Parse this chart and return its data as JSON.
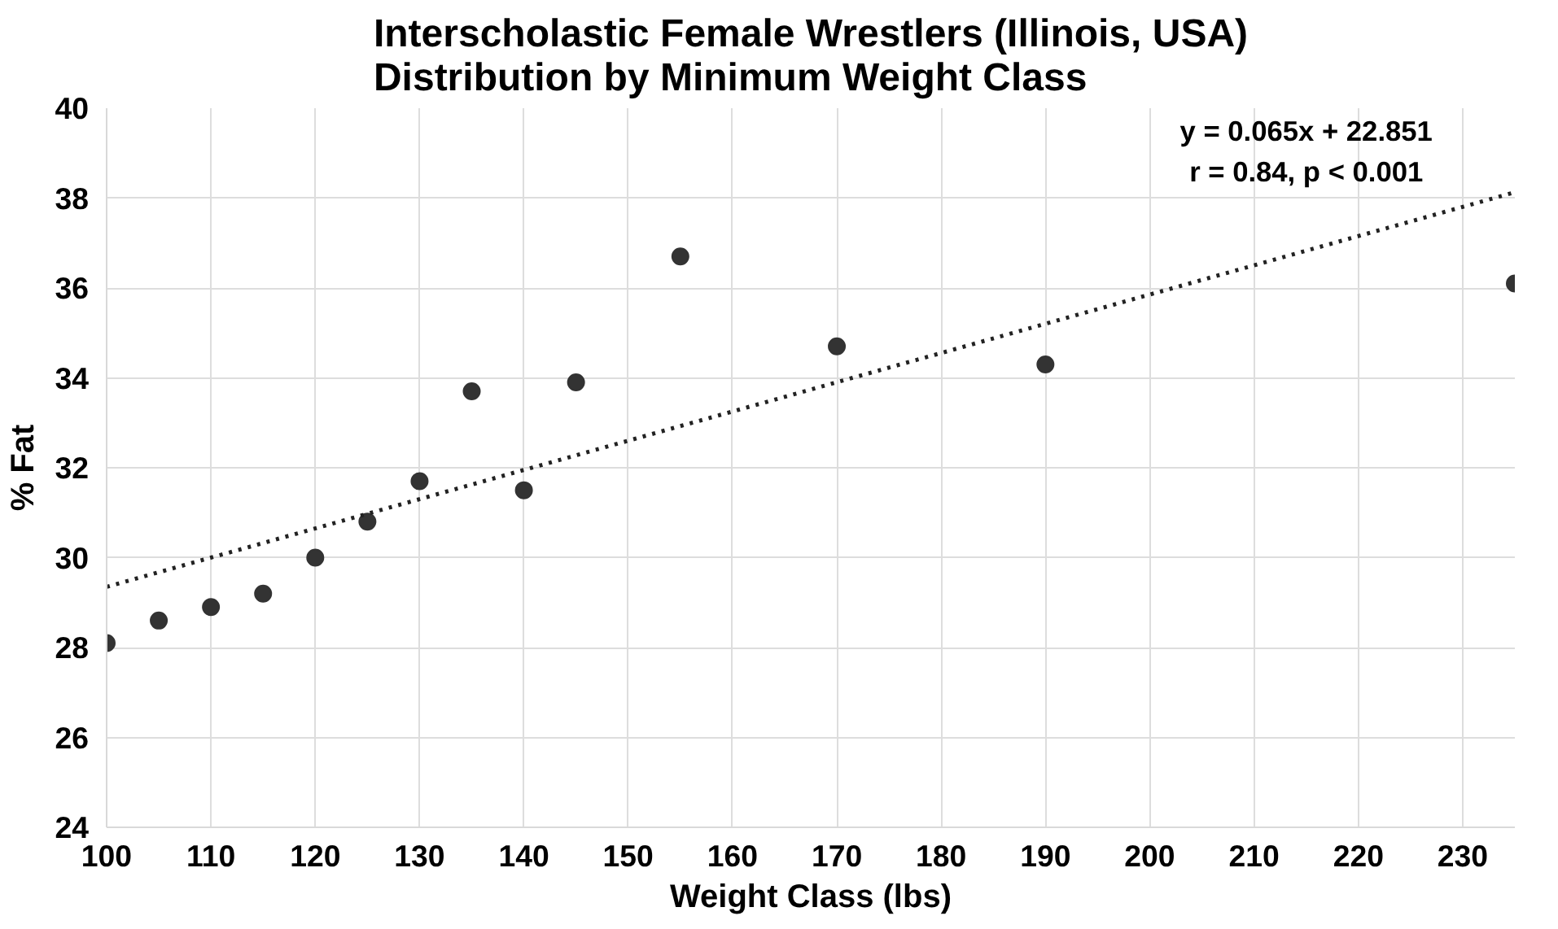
{
  "chart_data": {
    "type": "scatter",
    "title": "Interscholastic Female Wrestlers (Illinois, USA)\nDistribution by Minimum Weight Class",
    "xlabel": "Weight Class (lbs)",
    "ylabel": "% Fat",
    "annotations": [
      "y = 0.065x + 22.851",
      "r = 0.84, p < 0.001"
    ],
    "series": [
      {
        "color": "#333333",
        "marker": "circle",
        "x": [
          100,
          105,
          110,
          115,
          120,
          125,
          130,
          135,
          140,
          145,
          155,
          170,
          190,
          235
        ],
        "values": [
          28.1,
          28.6,
          28.9,
          29.2,
          30.0,
          30.8,
          31.7,
          33.7,
          31.5,
          33.9,
          36.7,
          34.7,
          34.3,
          36.1
        ]
      },
      {
        "type": "line",
        "color": "#222222",
        "line_style": "dotted",
        "x": [
          100,
          235
        ],
        "values": [
          29.35,
          38.13
        ]
      }
    ],
    "xlim": [
      100,
      235
    ],
    "ylim": [
      24,
      40
    ],
    "xticks": [
      100,
      110,
      120,
      130,
      140,
      150,
      160,
      170,
      180,
      190,
      200,
      210,
      220,
      230
    ],
    "yticks": [
      24,
      26,
      28,
      30,
      32,
      34,
      36,
      38,
      40
    ],
    "grid": true
  }
}
